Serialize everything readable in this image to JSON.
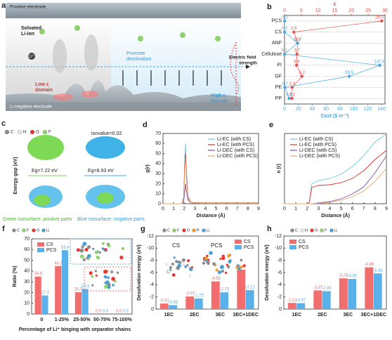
{
  "panel_a": {
    "label": "a",
    "positive_electrode": "Positive electrode",
    "solvated": [
      "Solvated",
      "Li-ion"
    ],
    "li_ion": "Li⁺",
    "promote": [
      "Promote",
      "desolvation"
    ],
    "field": [
      "Electric field",
      "strength"
    ],
    "low": [
      "Low ε",
      "domain"
    ],
    "high": [
      "High ε",
      "domain"
    ],
    "negative": "Li negative electrode"
  },
  "panel_c": {
    "label": "c",
    "atoms": [
      "C",
      "H",
      "O",
      "F"
    ],
    "isovalue": "isovalue=0.02",
    "ylabel": "Energy gap (eV)",
    "gaps": [
      "Eg=7.22 eV",
      "Eg=8.93 eV"
    ],
    "legend": [
      "Green isosurface: positive parts",
      "Blue isosurface: negative parts"
    ]
  },
  "chart_data": [
    {
      "panel": "b",
      "type": "dot",
      "categories": [
        "PCS",
        "CS",
        "ANF",
        "Cellulose",
        "PI",
        "GF",
        "PE",
        "PP"
      ],
      "xlabel": "Cost ($ m⁻²)",
      "xlim": [
        0,
        145
      ],
      "xticks": [
        0,
        20,
        40,
        60,
        80,
        100,
        120,
        140
      ],
      "x2label": "ε",
      "x2lim": [
        0,
        30
      ],
      "x2ticks": [
        0,
        5,
        10,
        15,
        20,
        25,
        30
      ],
      "series": [
        {
          "axis": "x2",
          "color": "#e8504a",
          "values": [
            29.0,
            2.8,
            3.9,
            3.7,
            3.6,
            5.2,
            2.3,
            2.2
          ],
          "value_labels": [
            "29.0",
            "2.8",
            "3.9",
            "3.7",
            "3.6",
            "5.2",
            "2.3",
            "2.2"
          ]
        },
        {
          "axis": "x",
          "color": "#4aa8e0",
          "values": [
            0.3,
            0.2,
            18.7,
            0.1,
            137.6,
            93.5,
            0.7,
            6.6
          ],
          "value_labels": [
            "0.3",
            "0.2",
            "18.7",
            "0.1",
            "137.6",
            "93.5",
            "0.7",
            "6.6"
          ]
        }
      ]
    },
    {
      "panel": "d",
      "type": "line",
      "xlabel": "Distance (Å)",
      "ylabel": "g(r)",
      "xlim": [
        0,
        9
      ],
      "xticks": [
        0,
        1,
        2,
        3,
        4,
        5,
        6,
        7,
        8,
        9
      ],
      "ylim": [
        0,
        70
      ],
      "yticks": [
        0,
        10,
        20,
        30,
        40,
        50,
        60,
        70
      ],
      "legend": "upper right",
      "x": [
        0,
        1,
        1.8,
        1.95,
        2.05,
        2.12,
        2.2,
        2.35,
        2.6,
        3,
        3.5,
        4,
        5,
        6,
        7,
        8,
        9
      ],
      "series": [
        {
          "name": "Li-EC (with CS)",
          "color": "#6ec6e8",
          "values": [
            0,
            0,
            0,
            8,
            45,
            60,
            35,
            8,
            1.5,
            0.8,
            1.2,
            1.1,
            1,
            1,
            1,
            1,
            1
          ]
        },
        {
          "name": "Li-EC (with PCS)",
          "color": "#d9342b",
          "values": [
            0,
            0,
            0,
            6,
            38,
            50,
            30,
            7,
            1.3,
            0.8,
            1.1,
            1,
            1,
            1,
            1,
            1,
            1
          ]
        },
        {
          "name": "Li-DEC (with CS)",
          "color": "#7b4fa0",
          "values": [
            0,
            0,
            0,
            2,
            12,
            20,
            13,
            4,
            1,
            0.6,
            0.9,
            1,
            1,
            1,
            1,
            1,
            1
          ]
        },
        {
          "name": "Li-DEC (with PCS)",
          "color": "#f0a56a",
          "values": [
            0,
            0,
            0,
            5,
            33,
            45,
            26,
            6,
            1.2,
            0.7,
            1,
            1,
            1,
            1,
            1,
            1,
            1
          ]
        }
      ]
    },
    {
      "panel": "e",
      "type": "line",
      "xlabel": "Distance (Å)",
      "ylabel": "n (r)",
      "xlim": [
        0,
        9
      ],
      "xticks": [
        0,
        1,
        2,
        3,
        4,
        5,
        6,
        7,
        8,
        9
      ],
      "ylim": [
        0,
        10
      ],
      "legend": "upper left",
      "x": [
        0,
        1,
        2,
        2.2,
        2.4,
        3,
        4,
        5,
        6,
        7,
        8,
        9
      ],
      "series": [
        {
          "name": "Li-EC (with CS)",
          "color": "#6ec6e8",
          "values": [
            0,
            0,
            0,
            0.2,
            2.8,
            3.3,
            3.6,
            4.2,
            5.3,
            6.8,
            8.8,
            9.9
          ]
        },
        {
          "name": "Li-EC (with PCS)",
          "color": "#d9342b",
          "values": [
            0,
            0,
            0,
            0.2,
            2.3,
            2.6,
            2.7,
            3,
            3.6,
            4.7,
            6.3,
            7.6
          ]
        },
        {
          "name": "Li-DEC (with CS)",
          "color": "#7b4fa0",
          "values": [
            0,
            0,
            0,
            0,
            0,
            0.1,
            0.3,
            0.7,
            1.4,
            2.4,
            4.4,
            6.8
          ]
        },
        {
          "name": "Li-DEC (with PCS)",
          "color": "#f0a56a",
          "values": [
            0,
            0,
            0,
            0,
            0,
            0.05,
            0.2,
            0.5,
            1,
            1.8,
            3.2,
            5
          ]
        }
      ]
    },
    {
      "panel": "f",
      "type": "bar",
      "atoms": [
        "C",
        "F",
        "O",
        "Li"
      ],
      "xlabel": "Percentage of Li⁺ binging with separator chains",
      "ylabel": "Ratio (%)",
      "categories": [
        "0",
        "1-25%",
        "25-50%",
        "50-75%",
        "75-100%"
      ],
      "ylim": [
        0,
        70
      ],
      "yticks": [
        0,
        10,
        20,
        30,
        40,
        50,
        60,
        70
      ],
      "legend": "upper left",
      "series": [
        {
          "name": "CS",
          "color": "#f26d6d",
          "values": [
            34.9,
            44.7,
            20.3,
            0,
            0
          ],
          "value_labels": [
            "34.9",
            "44.7",
            "20.3",
            "0.0",
            "0.0"
          ]
        },
        {
          "name": "PCS",
          "color": "#5ab0e8",
          "values": [
            17.3,
            59.4,
            23.3,
            0,
            0
          ],
          "value_labels": [
            "17.3",
            "59.4",
            "23.3",
            "0.0",
            "0.0"
          ]
        }
      ]
    },
    {
      "panel": "g",
      "type": "bar",
      "atoms": [
        "C",
        "F",
        "O",
        "P",
        "Li"
      ],
      "annotations": [
        "CS",
        "PCS"
      ],
      "ylabel": "Desolvation energy (eV)",
      "categories": [
        "1EC",
        "2EC",
        "3EC",
        "3EC+1DEC"
      ],
      "ylim": [
        0,
        -12
      ],
      "yticks": [
        0,
        -2,
        -4,
        -6,
        -8,
        -10,
        -12
      ],
      "legend": "upper right",
      "series": [
        {
          "name": "CS",
          "color": "#f26d6d",
          "values": [
            -0.91,
            -2.07,
            -4.55,
            -6.47
          ]
        },
        {
          "name": "PCS",
          "color": "#5ab0e8",
          "values": [
            -0.65,
            -1.75,
            -2.75,
            -3.12
          ]
        }
      ]
    },
    {
      "panel": "h",
      "type": "bar",
      "atoms": [
        "C",
        "H",
        "O",
        "F",
        "Li"
      ],
      "ylabel": "Desolvation energy (eV)",
      "categories": [
        "1EC",
        "2EC",
        "3EC",
        "3EC+1DEC"
      ],
      "ylim": [
        0,
        -12
      ],
      "yticks": [
        0,
        -2,
        -4,
        -6,
        -8,
        -10,
        -12
      ],
      "legend": "upper left",
      "series": [
        {
          "name": "CS",
          "color": "#f26d6d",
          "values": [
            -1.01,
            -3.07,
            -5.05,
            -6.86
          ]
        },
        {
          "name": "PCS",
          "color": "#5ab0e8",
          "values": [
            -0.97,
            -2.95,
            -4.95,
            -5.86
          ]
        }
      ]
    }
  ]
}
